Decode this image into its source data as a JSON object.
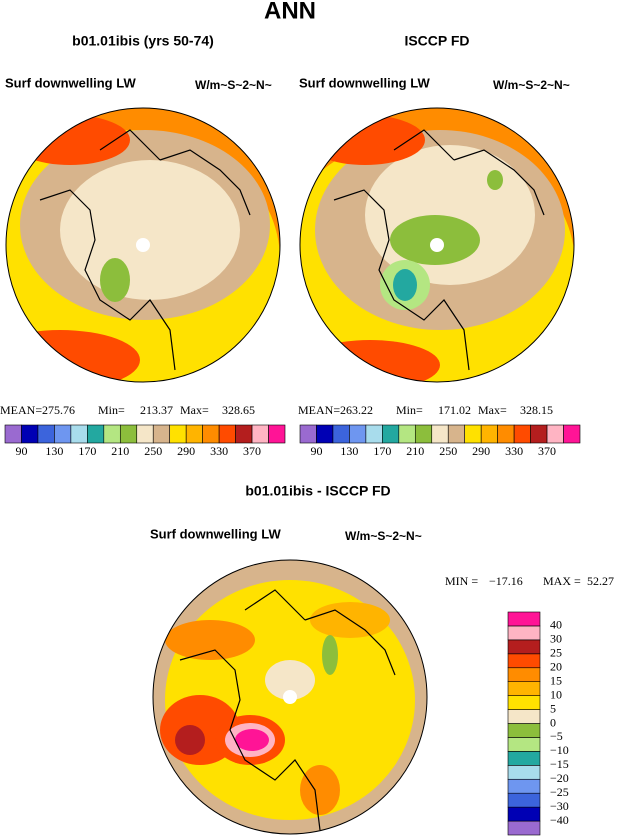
{
  "title": "ANN",
  "panels": [
    {
      "title": "b01.01ibis (yrs 50-74)",
      "variable": "Surf downwelling LW",
      "units": "W/m~S~2~N~",
      "stats": [
        {
          "label": "MEAN=",
          "value": 275.76
        },
        {
          "label": "Min=",
          "value": 213.37
        },
        {
          "label": "Max=",
          "value": 328.65
        }
      ]
    },
    {
      "title": "ISCCP FD",
      "variable": "Surf downwelling LW",
      "units": "W/m~S~2~N~",
      "stats": [
        {
          "label": "MEAN=",
          "value": 263.22
        },
        {
          "label": "Min=",
          "value": 171.02
        },
        {
          "label": "Max=",
          "value": 328.15
        }
      ]
    },
    {
      "title": "b01.01ibis - ISCCP FD",
      "variable": "Surf downwelling LW",
      "units": "W/m~S~2~N~",
      "stats": [
        {
          "label": "MIN =",
          "value": {
            "value": -17.16,
            "label": "−17.16"
          }
        },
        {
          "label": "MAX =",
          "value": 52.27
        }
      ]
    }
  ],
  "colorbar_top": {
    "lim": [
      70,
      410
    ],
    "ticks": [
      90,
      130,
      170,
      210,
      250,
      290,
      330,
      370
    ],
    "colors": [
      "#9a6ad0",
      "#0000b4",
      "#3c64dc",
      "#6e96f0",
      "#a8dcec",
      "#23a8a0",
      "#b4e682",
      "#8cbe3c",
      "#f5e6c8",
      "#d7b48c",
      "#ffe100",
      "#ffb400",
      "#ff8c00",
      "#ff4b00",
      "#b41e1e",
      "#ffb4c3",
      "#ff1496"
    ]
  },
  "colorbar_diff": {
    "ticks": [
      {
        "value": -40,
        "label": "−40"
      },
      {
        "value": -30,
        "label": "−30"
      },
      {
        "value": -25,
        "label": "−25"
      },
      {
        "value": -20,
        "label": "−20"
      },
      {
        "value": -15,
        "label": "−15"
      },
      {
        "value": -10,
        "label": "−10"
      },
      {
        "value": -5,
        "label": "−5"
      },
      0,
      5,
      10,
      15,
      20,
      25,
      30,
      40
    ],
    "colors": [
      "#9a6ad0",
      "#0000b4",
      "#3c64dc",
      "#6e96f0",
      "#a8dcec",
      "#23a8a0",
      "#b4e682",
      "#8cbe3c",
      "#f5e6c8",
      "#ffe100",
      "#ffb400",
      "#ff8c00",
      "#ff4b00",
      "#b41e1e",
      "#ffb4c3",
      "#ff1496"
    ]
  }
}
